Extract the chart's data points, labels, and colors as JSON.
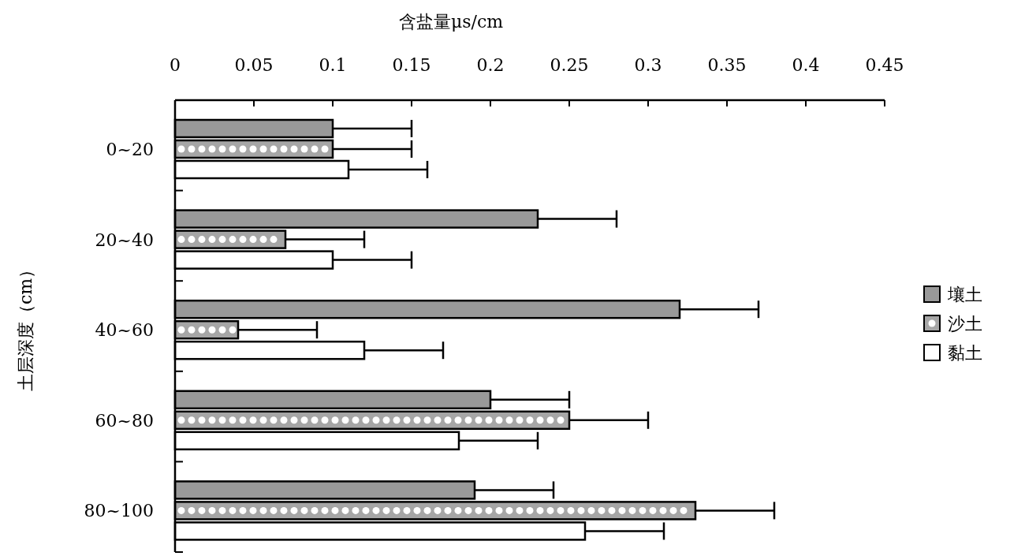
{
  "chart_data": {
    "type": "bar",
    "orientation": "horizontal",
    "xlabel": "含盐量μs/cm",
    "ylabel": "土层深度（cm）",
    "categories": [
      "0~20",
      "20~40",
      "40~60",
      "60~80",
      "80~100"
    ],
    "xlim": [
      0,
      0.45
    ],
    "xticks": [
      0,
      0.05,
      0.1,
      0.15,
      0.2,
      0.25,
      0.3,
      0.35,
      0.4,
      0.45
    ],
    "grid": false,
    "legend": "right",
    "series": [
      {
        "name": "壤土",
        "color": "#999999",
        "values": [
          0.1,
          0.23,
          0.32,
          0.2,
          0.19
        ],
        "errors": [
          [
            0.1,
            0.15
          ],
          [
            0.23,
            0.28
          ],
          [
            0.32,
            0.37
          ],
          [
            0.2,
            0.25
          ],
          [
            0.19,
            0.24
          ]
        ]
      },
      {
        "name": "沙土",
        "color": "#a6a6a6",
        "values": [
          0.1,
          0.07,
          0.04,
          0.25,
          0.33
        ],
        "errors": [
          [
            0.1,
            0.15
          ],
          [
            0.07,
            0.12
          ],
          [
            0.04,
            0.09
          ],
          [
            0.25,
            0.3
          ],
          [
            0.33,
            0.38
          ]
        ]
      },
      {
        "name": "黏土",
        "color": "#ffffff",
        "values": [
          0.11,
          0.1,
          0.12,
          0.18,
          0.26
        ],
        "errors": [
          [
            0.11,
            0.16
          ],
          [
            0.1,
            0.15
          ],
          [
            0.12,
            0.17
          ],
          [
            0.18,
            0.23
          ],
          [
            0.26,
            0.31
          ]
        ]
      }
    ]
  }
}
